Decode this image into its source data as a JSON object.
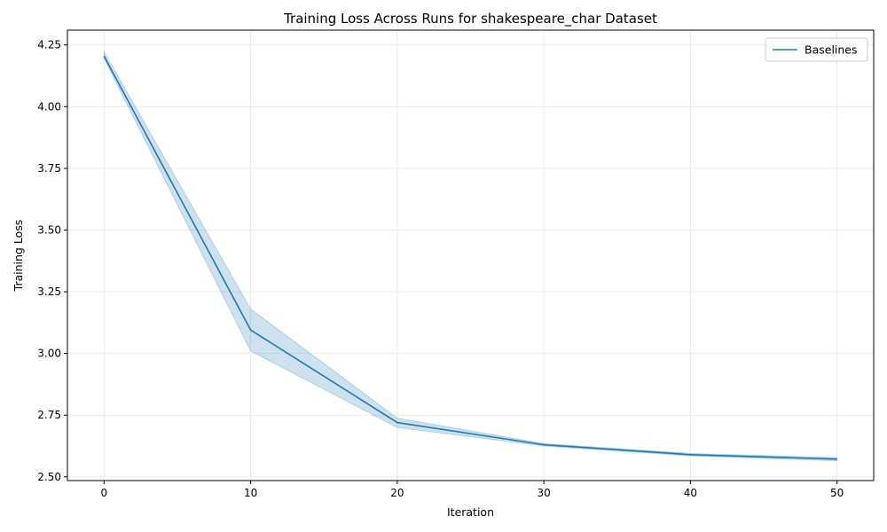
{
  "chart_data": {
    "type": "line",
    "title": "Training Loss Across Runs for shakespeare_char Dataset",
    "xlabel": "Iteration",
    "ylabel": "Training Loss",
    "xlim": [
      -2.5,
      52.5
    ],
    "ylim": [
      2.485,
      4.31
    ],
    "xticks": [
      0,
      10,
      20,
      30,
      40,
      50
    ],
    "yticks": [
      2.5,
      2.75,
      3.0,
      3.25,
      3.5,
      3.75,
      4.0,
      4.25
    ],
    "grid": true,
    "legend_position": "top-right",
    "series": [
      {
        "name": "Baselines",
        "color": "#1f77b4",
        "band_color": "#1f77b4",
        "x": [
          0,
          10,
          20,
          30,
          40,
          50
        ],
        "y": [
          4.205,
          3.095,
          2.72,
          2.63,
          2.59,
          2.572
        ],
        "y_lower": [
          4.195,
          3.01,
          2.7,
          2.625,
          2.585,
          2.565
        ],
        "y_upper": [
          4.222,
          3.18,
          2.738,
          2.635,
          2.595,
          2.578
        ]
      }
    ]
  }
}
